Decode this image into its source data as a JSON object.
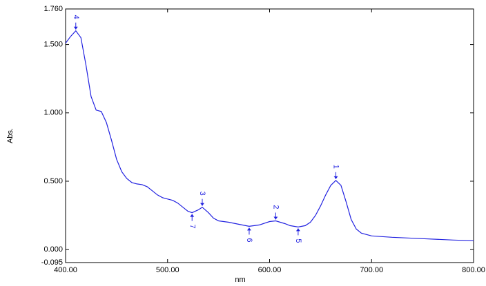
{
  "chart_data": {
    "type": "line",
    "xlabel": "nm",
    "ylabel": "Abs.",
    "color": "#2020e0",
    "x": [
      400,
      405,
      410,
      415,
      420,
      425,
      430,
      435,
      440,
      445,
      450,
      455,
      460,
      465,
      470,
      475,
      480,
      485,
      490,
      495,
      500,
      505,
      510,
      515,
      520,
      524,
      530,
      534,
      540,
      545,
      550,
      560,
      570,
      580,
      590,
      600,
      606,
      615,
      620,
      628,
      635,
      640,
      645,
      650,
      655,
      660,
      665,
      670,
      675,
      680,
      685,
      690,
      700,
      720,
      750,
      780,
      800
    ],
    "values": [
      1.51,
      1.56,
      1.6,
      1.55,
      1.35,
      1.12,
      1.02,
      1.01,
      0.93,
      0.8,
      0.66,
      0.57,
      0.52,
      0.49,
      0.48,
      0.475,
      0.46,
      0.43,
      0.4,
      0.38,
      0.37,
      0.36,
      0.34,
      0.31,
      0.28,
      0.27,
      0.29,
      0.31,
      0.27,
      0.23,
      0.21,
      0.2,
      0.185,
      0.17,
      0.18,
      0.205,
      0.21,
      0.19,
      0.175,
      0.165,
      0.175,
      0.2,
      0.25,
      0.32,
      0.4,
      0.47,
      0.506,
      0.47,
      0.35,
      0.22,
      0.15,
      0.12,
      0.1,
      0.09,
      0.08,
      0.07,
      0.065
    ],
    "xlim": [
      400,
      800
    ],
    "xticks": [
      {
        "value": 400,
        "label": "400.00"
      },
      {
        "value": 500,
        "label": "500.00"
      },
      {
        "value": 600,
        "label": "600.00"
      },
      {
        "value": 700,
        "label": "700.00"
      },
      {
        "value": 800,
        "label": "800.00"
      }
    ],
    "ylim": [
      -0.095,
      1.76
    ],
    "yticks": [
      {
        "value": -0.095,
        "label": "-0.095"
      },
      {
        "value": 0,
        "label": "0.000"
      },
      {
        "value": 0.5,
        "label": "0.500"
      },
      {
        "value": 1,
        "label": "1.000"
      },
      {
        "value": 1.5,
        "label": "1.500"
      },
      {
        "value": 1.76,
        "label": "1.760"
      }
    ],
    "peaks": [
      {
        "label": "1",
        "x": 665,
        "y": 0.506,
        "position": "above"
      },
      {
        "label": "2",
        "x": 606,
        "y": 0.21,
        "position": "above"
      },
      {
        "label": "3",
        "x": 534,
        "y": 0.31,
        "position": "above"
      },
      {
        "label": "4",
        "x": 410,
        "y": 1.6,
        "position": "above"
      },
      {
        "label": "5",
        "x": 628,
        "y": 0.165,
        "position": "below"
      },
      {
        "label": "6",
        "x": 580,
        "y": 0.17,
        "position": "below"
      },
      {
        "label": "7",
        "x": 524,
        "y": 0.27,
        "position": "below"
      }
    ]
  }
}
